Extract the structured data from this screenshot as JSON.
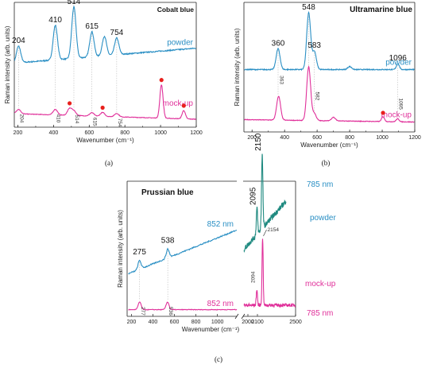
{
  "colors": {
    "powder": "#2a8fc4",
    "mockup": "#e0309a",
    "powder785": "#1f8a80",
    "dot": "#e8201c",
    "axis": "#222222"
  },
  "chart_data": [
    {
      "type": "line",
      "panel": "(a)",
      "title": "Cobalt blue",
      "xlabel": "Wavenumber (cm⁻¹)",
      "ylabel": "Raman intensity (arb. units)",
      "xlim": [
        180,
        1200
      ],
      "xticks": [
        "200",
        "400",
        "600",
        "800",
        "1000",
        "1200"
      ],
      "series": [
        {
          "name": "powder",
          "peaks": [
            [
              204,
              0.3
            ],
            [
              410,
              0.62
            ],
            [
              514,
              0.92
            ],
            [
              615,
              0.45
            ],
            [
              685,
              0.35
            ],
            [
              754,
              0.3
            ]
          ],
          "baseline": [
            0.15,
            0.42
          ],
          "noise": 0.02
        },
        {
          "name": "mock-up",
          "peaks": [
            [
              204,
              0.08
            ],
            [
              410,
              0.1
            ],
            [
              490,
              0.12
            ],
            [
              514,
              0.08
            ],
            [
              615,
              0.06
            ],
            [
              675,
              0.07
            ],
            [
              754,
              0.06
            ],
            [
              1005,
              0.6
            ],
            [
              1130,
              0.15
            ]
          ],
          "baseline": [
            0.1,
            0.0
          ],
          "noise": 0.01
        }
      ],
      "powder_labels": [
        "204",
        "410",
        "514",
        "615",
        "754"
      ],
      "mockup_labels": [
        "204",
        "410",
        "514",
        "615",
        "754"
      ],
      "marked_peaks_mockup": [
        490,
        675,
        1005,
        1130
      ]
    },
    {
      "type": "line",
      "panel": "(b)",
      "title": "Ultramarine blue",
      "xlabel": "Wavenumber (cm⁻¹)",
      "ylabel": "Raman intensity (arb. units)",
      "xlim": [
        150,
        1200
      ],
      "xticks": [
        "200",
        "400",
        "600",
        "800",
        "1000",
        "1200"
      ],
      "series": [
        {
          "name": "powder",
          "peaks": [
            [
              360,
              0.35
            ],
            [
              548,
              0.95
            ],
            [
              583,
              0.3
            ],
            [
              800,
              0.05
            ],
            [
              1096,
              0.1
            ]
          ],
          "baseline": [
            0.1,
            0.1
          ],
          "noise": 0.015
        },
        {
          "name": "mock-up",
          "peaks": [
            [
              363,
              0.4
            ],
            [
              548,
              0.9
            ],
            [
              582,
              0.12
            ],
            [
              700,
              0.06
            ],
            [
              1005,
              0.08
            ],
            [
              1095,
              0.05
            ]
          ],
          "baseline": [
            0.06,
            0.02
          ],
          "noise": 0.01
        }
      ],
      "powder_labels": [
        "360",
        "548",
        "583",
        "1096"
      ],
      "mockup_labels": [
        "363",
        "582",
        "1095"
      ],
      "marked_peaks_mockup": [
        1005
      ]
    },
    {
      "type": "line",
      "panel": "(c)",
      "title": "Prussian blue",
      "xlabel": "Wavenumber (cm⁻¹)",
      "ylabel": "Raman intensity (arb. units)",
      "xticks_left": [
        "200",
        "400",
        "600",
        "800",
        "1000"
      ],
      "xticks_right": [
        "2000",
        "2100",
        "2500"
      ],
      "series": [
        {
          "name": "852 nm",
          "peaks": [
            [
              275,
              0.1
            ],
            [
              538,
              0.1
            ]
          ],
          "baseline": [
            0.05,
            0.55
          ],
          "noise": 0.015
        },
        {
          "name": "852 nm",
          "peaks": [
            [
              277,
              0.12
            ],
            [
              536,
              0.12
            ]
          ],
          "baseline": [
            0.03,
            0.03
          ],
          "noise": 0.01
        },
        {
          "name": "785 nm",
          "peaks": [
            [
              2095,
              0.3
            ],
            [
              2150,
              0.85
            ]
          ],
          "baseline": [
            0.15,
            0.7
          ],
          "noise": 0.06
        },
        {
          "name": "785 nm",
          "peaks": [
            [
              2094,
              0.2
            ],
            [
              2154,
              0.85
            ]
          ],
          "baseline": [
            0.08,
            0.08
          ],
          "noise": 0.04
        }
      ],
      "group_labels": {
        "powder": "powder",
        "mockup": "mock-up"
      },
      "labels_852_powder": [
        "275",
        "538"
      ],
      "labels_852_mockup": [
        "277",
        "536"
      ],
      "labels_785_powder": [
        "2095",
        "2150"
      ],
      "labels_785_mockup": [
        "2094",
        "2154"
      ]
    }
  ]
}
